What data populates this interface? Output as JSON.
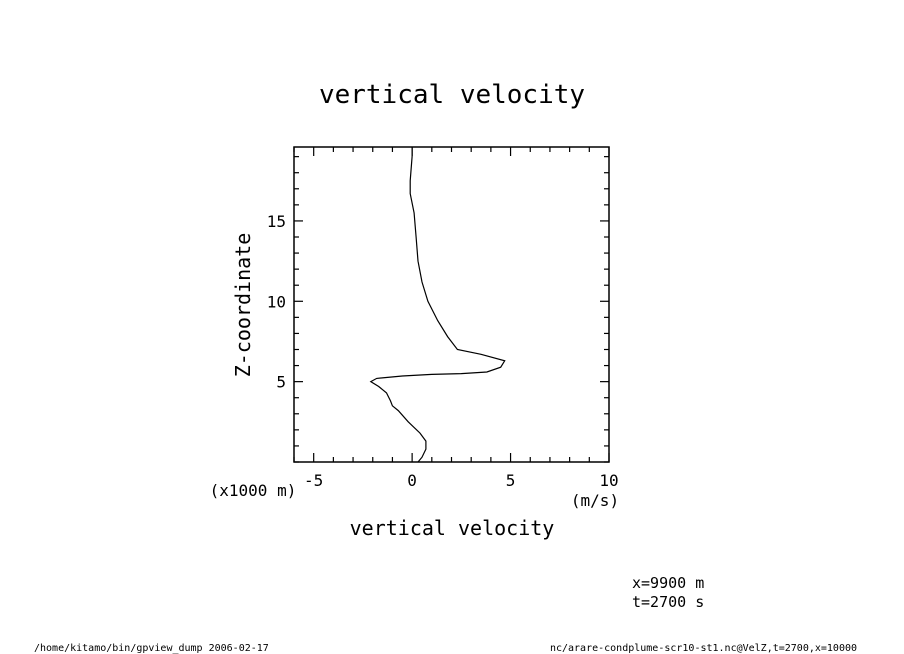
{
  "chart_data": {
    "type": "line",
    "title": "vertical velocity",
    "xlabel": "vertical velocity",
    "x_unit": "(m/s)",
    "ylabel": "Z-coordinate",
    "y_unit": "(x1000 m)",
    "xlim": [
      -6,
      10
    ],
    "ylim": [
      0,
      19.6
    ],
    "x_ticks": [
      -5,
      0,
      5,
      10
    ],
    "y_ticks": [
      5,
      10,
      15
    ],
    "x_tick_labels": [
      "-5",
      "0",
      "5",
      "10"
    ],
    "y_tick_labels": [
      "5",
      "10",
      "15"
    ],
    "grid": false,
    "series": [
      {
        "points": [
          [
            0.3,
            0.0
          ],
          [
            0.5,
            0.3
          ],
          [
            0.7,
            0.8
          ],
          [
            0.7,
            1.3
          ],
          [
            0.4,
            1.8
          ],
          [
            -0.2,
            2.5
          ],
          [
            -0.7,
            3.2
          ],
          [
            -1.0,
            3.5
          ],
          [
            -1.1,
            3.8
          ],
          [
            -1.3,
            4.3
          ],
          [
            -1.7,
            4.7
          ],
          [
            -2.1,
            5.0
          ],
          [
            -1.8,
            5.2
          ],
          [
            -0.5,
            5.35
          ],
          [
            1.0,
            5.45
          ],
          [
            2.5,
            5.5
          ],
          [
            3.8,
            5.6
          ],
          [
            4.5,
            5.9
          ],
          [
            4.7,
            6.3
          ],
          [
            3.5,
            6.7
          ],
          [
            2.3,
            7.0
          ],
          [
            1.8,
            7.8
          ],
          [
            1.3,
            8.8
          ],
          [
            0.8,
            10.0
          ],
          [
            0.5,
            11.2
          ],
          [
            0.3,
            12.5
          ],
          [
            0.2,
            14.0
          ],
          [
            0.1,
            15.5
          ],
          [
            -0.1,
            16.7
          ],
          [
            -0.1,
            17.5
          ],
          [
            0.0,
            19.0
          ],
          [
            0.0,
            19.6
          ]
        ]
      }
    ]
  },
  "annotations": {
    "x_value": "x=9900  m",
    "t_value": "t=2700  s",
    "footer_left": "/home/kitamo/bin/gpview_dump  2006-02-17",
    "footer_right": "nc/arare-condplume-scr10-st1.nc@VelZ,t=2700,x=10000"
  }
}
